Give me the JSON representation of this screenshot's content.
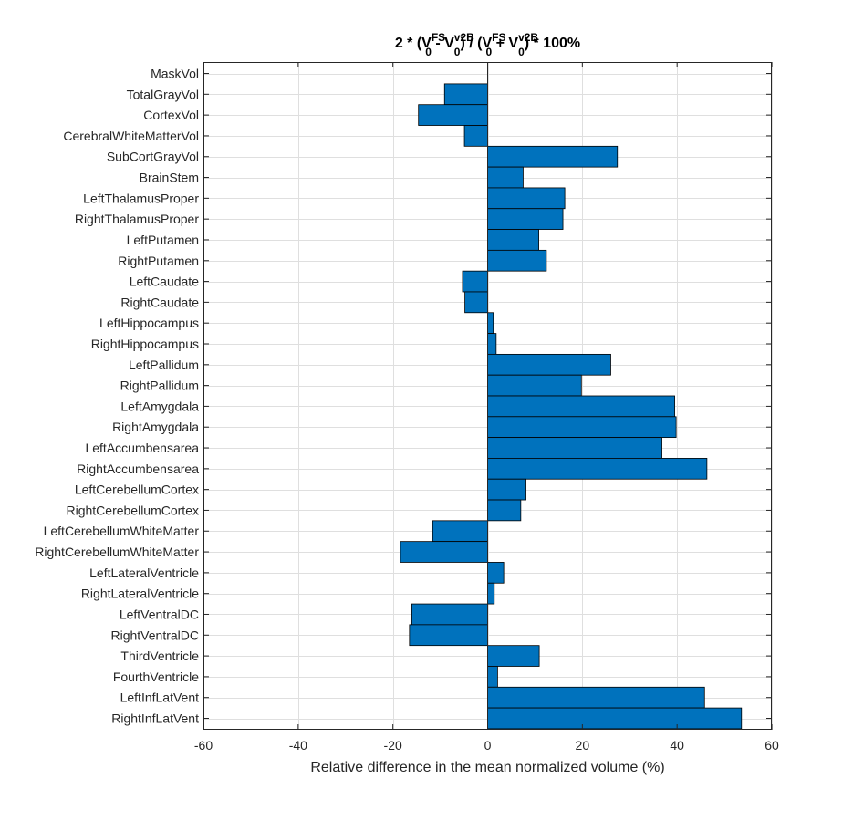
{
  "chart_data": {
    "type": "bar",
    "orientation": "horizontal",
    "title": {
      "parts": [
        {
          "t": "2 * (V",
          "k": "n"
        },
        {
          "t": "FS",
          "k": "sup"
        },
        {
          "t": "0",
          "k": "sub"
        },
        {
          "t": " - V",
          "k": "n"
        },
        {
          "t": "v2B",
          "k": "sup"
        },
        {
          "t": "0",
          "k": "sub"
        },
        {
          "t": ") / (V",
          "k": "n"
        },
        {
          "t": "FS",
          "k": "sup"
        },
        {
          "t": "0",
          "k": "sub"
        },
        {
          "t": " + V",
          "k": "n"
        },
        {
          "t": "v2B",
          "k": "sup"
        },
        {
          "t": "0",
          "k": "sub"
        },
        {
          "t": ") * 100%",
          "k": "n"
        }
      ]
    },
    "xlabel": "Relative difference in the mean normalized volume (%)",
    "ylabel": "",
    "xlim": [
      -60,
      60
    ],
    "xticks": [
      -60,
      -40,
      -20,
      0,
      20,
      40,
      60
    ],
    "xtick_labels": [
      "-60",
      "-40",
      "-20",
      "0",
      "20",
      "40",
      "60"
    ],
    "grid": true,
    "bar_color": "#0072BD",
    "bar_edge_color": "#000000",
    "categories": [
      "MaskVol",
      "TotalGrayVol",
      "CortexVol",
      "CerebralWhiteMatterVol",
      "SubCortGrayVol",
      "BrainStem",
      "LeftThalamusProper",
      "RightThalamusProper",
      "LeftPutamen",
      "RightPutamen",
      "LeftCaudate",
      "RightCaudate",
      "LeftHippocampus",
      "RightHippocampus",
      "LeftPallidum",
      "RightPallidum",
      "LeftAmygdala",
      "RightAmygdala",
      "LeftAccumbensarea",
      "RightAccumbensarea",
      "LeftCerebellumCortex",
      "RightCerebellumCortex",
      "LeftCerebellumWhiteMatter",
      "RightCerebellumWhiteMatter",
      "LeftLateralVentricle",
      "RightLateralVentricle",
      "LeftVentralDC",
      "RightVentralDC",
      "ThirdVentricle",
      "FourthVentricle",
      "LeftInfLatVent",
      "RightInfLatVent"
    ],
    "values": [
      0,
      -9.1,
      -14.6,
      -4.9,
      27.4,
      7.5,
      16.3,
      15.9,
      10.8,
      12.4,
      -5.3,
      -4.8,
      1.2,
      1.8,
      26.0,
      19.8,
      39.5,
      39.8,
      36.8,
      46.3,
      8.1,
      7.0,
      -11.6,
      -18.4,
      3.4,
      1.4,
      -16.0,
      -16.5,
      10.9,
      2.1,
      45.8,
      53.6
    ]
  }
}
